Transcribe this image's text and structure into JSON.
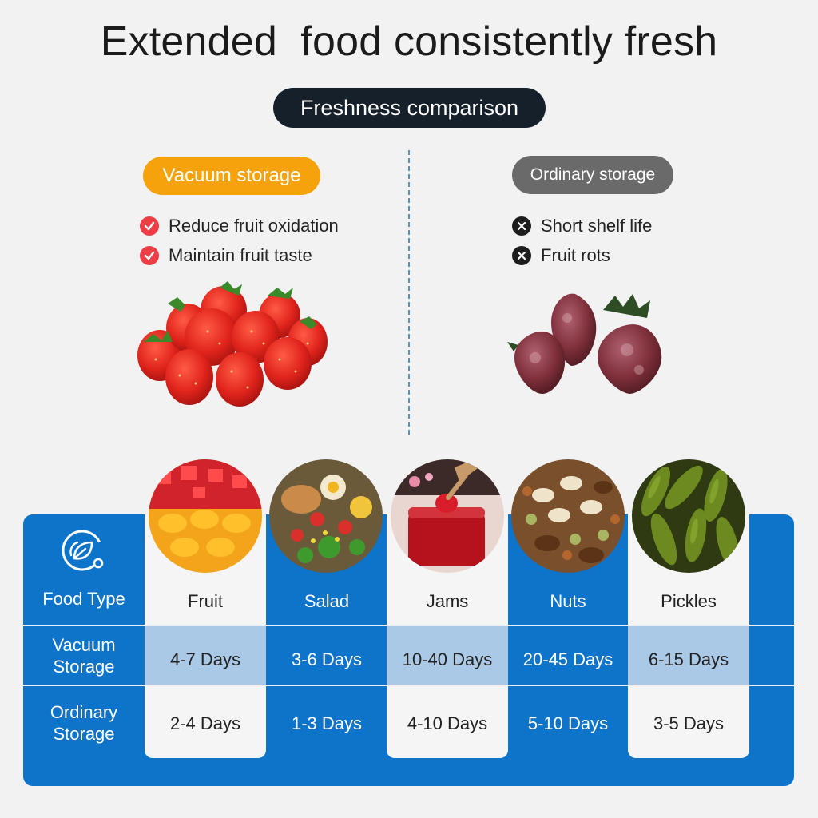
{
  "header": {
    "title": "Extended  food consistently fresh",
    "badge": "Freshness comparison"
  },
  "vacuum": {
    "label": "Vacuum storage",
    "features": [
      "Reduce fruit oxidation",
      "Maintain fruit taste"
    ]
  },
  "ordinary": {
    "label": "Ordinary storage",
    "features": [
      "Short shelf life",
      "Fruit rots"
    ]
  },
  "table": {
    "row_headers": {
      "food_type": "Food Type",
      "vacuum_l1": "Vacuum",
      "vacuum_l2": "Storage",
      "ordinary_l1": "Ordinary",
      "ordinary_l2": "Storage"
    },
    "columns": [
      {
        "food": "Fruit",
        "vacuum": "4-7 Days",
        "ordinary": "2-4 Days"
      },
      {
        "food": "Salad",
        "vacuum": "3-6 Days",
        "ordinary": "1-3 Days"
      },
      {
        "food": "Jams",
        "vacuum": "10-40 Days",
        "ordinary": "4-10 Days"
      },
      {
        "food": "Nuts",
        "vacuum": "20-45 Days",
        "ordinary": "5-10 Days"
      },
      {
        "food": "Pickles",
        "vacuum": "6-15 Days",
        "ordinary": "3-5 Days"
      }
    ]
  },
  "colors": {
    "table_blue": "#0d74c9",
    "highlight": "#a9c9e6",
    "orange": "#f5a20c",
    "check_red": "#ee3d45",
    "dark_pill": "#15202b"
  }
}
